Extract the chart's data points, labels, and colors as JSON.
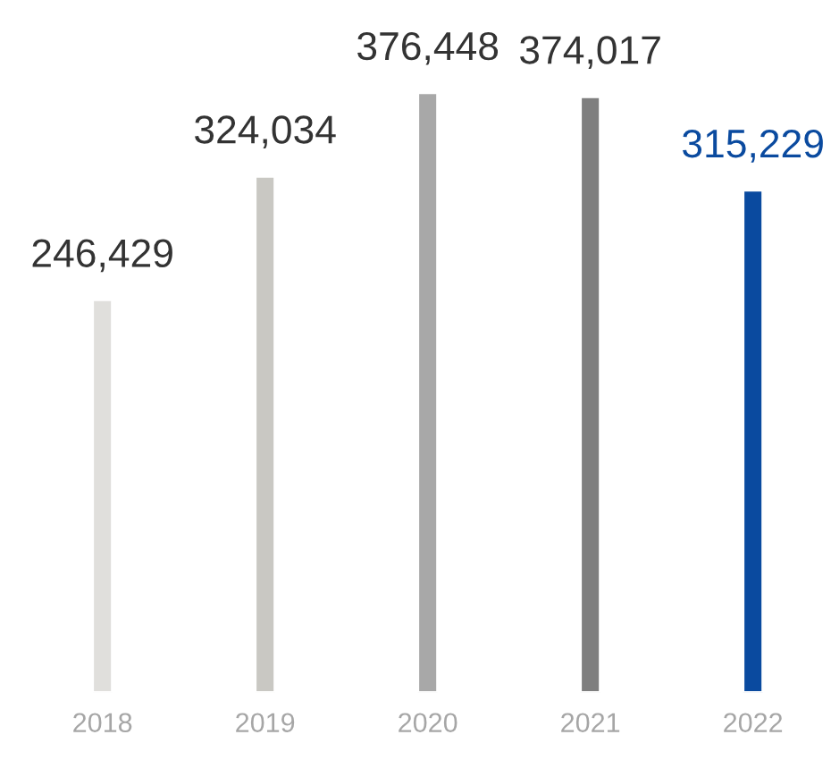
{
  "chart_data": {
    "type": "bar",
    "categories": [
      "2018",
      "2019",
      "2020",
      "2021",
      "2022"
    ],
    "values": [
      246429,
      324034,
      376448,
      374017,
      315229
    ],
    "colors": [
      "#e0dfdc",
      "#c9c8c3",
      "#a8a8a8",
      "#7f7f7f",
      "#0a4a9f"
    ],
    "value_labels": [
      "246,429",
      "324,034",
      "376,448",
      "374,017",
      "315,229"
    ],
    "grid": false,
    "legend": false
  }
}
